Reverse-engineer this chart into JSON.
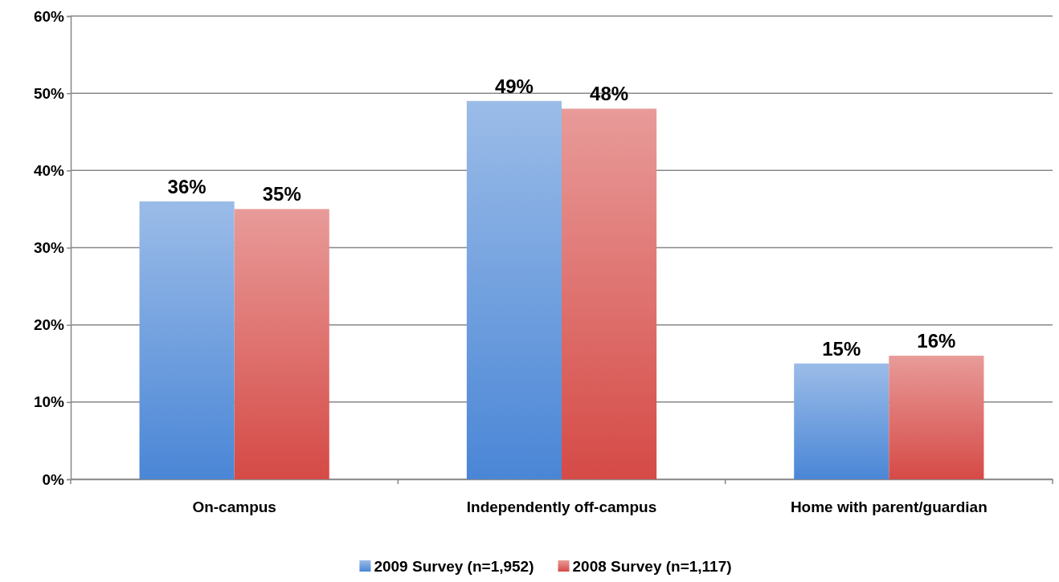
{
  "chart_data": {
    "type": "bar",
    "categories": [
      "On-campus",
      "Independently off-campus",
      "Home with parent/guardian"
    ],
    "series": [
      {
        "name": "2009 Survey (n=1,952)",
        "color": "#4a86d6",
        "values": [
          36,
          49,
          15
        ],
        "value_labels": [
          "36%",
          "49%",
          "15%"
        ]
      },
      {
        "name": "2008 Survey (n=1,117)",
        "color": "#d54a46",
        "values": [
          35,
          48,
          16
        ],
        "value_labels": [
          "35%",
          "48%",
          "16%"
        ]
      }
    ],
    "ylim": [
      0,
      60
    ],
    "yticks": [
      {
        "value": 0,
        "label": "0%"
      },
      {
        "value": 10,
        "label": "10%"
      },
      {
        "value": 20,
        "label": "20%"
      },
      {
        "value": 30,
        "label": "30%"
      },
      {
        "value": 40,
        "label": "40%"
      },
      {
        "value": 50,
        "label": "50%"
      },
      {
        "value": 60,
        "label": "60%"
      }
    ],
    "grid": "y",
    "legend": "bottom"
  }
}
